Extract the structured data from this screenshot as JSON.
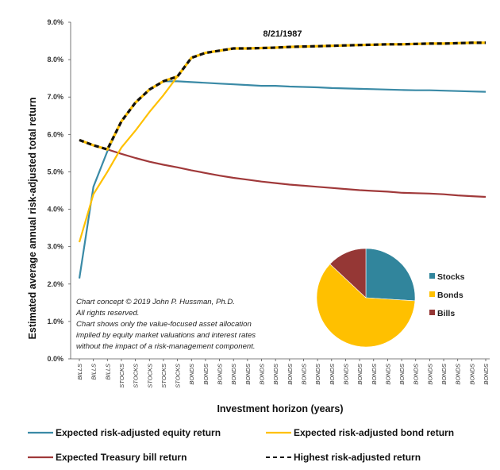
{
  "chart_data": {
    "type": "line",
    "title": "8/21/1987",
    "xlabel": "Investment horizon (years)",
    "ylabel": "Estimated average annual risk-adjusted  total return",
    "ylim": [
      0,
      9
    ],
    "y_ticks": [
      "0.0%",
      "1.0%",
      "2.0%",
      "3.0%",
      "4.0%",
      "5.0%",
      "6.0%",
      "7.0%",
      "8.0%",
      "9.0%"
    ],
    "y_tick_values": [
      0,
      1,
      2,
      3,
      4,
      5,
      6,
      7,
      8,
      9
    ],
    "categories": [
      "BILLS",
      "BILLS",
      "BILLS",
      "STOCKS",
      "STOCKS",
      "STOCKS",
      "STOCKS",
      "STOCKS",
      "BONDS",
      "BONDS",
      "BONDS",
      "BONDS",
      "BONDS",
      "BONDS",
      "BONDS",
      "BONDS",
      "BONDS",
      "BONDS",
      "BONDS",
      "BONDS",
      "BONDS",
      "BONDS",
      "BONDS",
      "BONDS",
      "BONDS",
      "BONDS",
      "BONDS",
      "BONDS",
      "BONDS",
      "BONDS"
    ],
    "series": [
      {
        "name": "Expected risk-adjusted equity return",
        "color": "#3a8aa6",
        "values": [
          2.15,
          4.6,
          5.55,
          6.35,
          6.85,
          7.2,
          7.42,
          7.42,
          7.4,
          7.38,
          7.36,
          7.34,
          7.32,
          7.3,
          7.3,
          7.28,
          7.27,
          7.26,
          7.24,
          7.23,
          7.22,
          7.21,
          7.2,
          7.19,
          7.18,
          7.18,
          7.17,
          7.16,
          7.15,
          7.14
        ]
      },
      {
        "name": "Expected risk-adjusted bond return",
        "color": "#ffc000",
        "values": [
          3.12,
          4.4,
          5.0,
          5.65,
          6.1,
          6.6,
          7.05,
          7.55,
          8.05,
          8.18,
          8.24,
          8.3,
          8.3,
          8.31,
          8.32,
          8.34,
          8.35,
          8.36,
          8.37,
          8.38,
          8.39,
          8.4,
          8.41,
          8.41,
          8.42,
          8.43,
          8.43,
          8.44,
          8.45,
          8.45
        ]
      },
      {
        "name": "Expected Treasury bill return",
        "color": "#a0393a",
        "values": [
          5.85,
          5.71,
          5.6,
          5.48,
          5.37,
          5.27,
          5.19,
          5.12,
          5.04,
          4.97,
          4.9,
          4.84,
          4.79,
          4.74,
          4.7,
          4.66,
          4.63,
          4.6,
          4.57,
          4.54,
          4.51,
          4.49,
          4.47,
          4.44,
          4.43,
          4.42,
          4.4,
          4.37,
          4.35,
          4.33
        ]
      },
      {
        "name": "Highest risk-adjusted return",
        "color": "#111111",
        "dashed": true,
        "values": [
          5.85,
          5.71,
          5.6,
          6.35,
          6.85,
          7.2,
          7.42,
          7.55,
          8.05,
          8.18,
          8.24,
          8.3,
          8.3,
          8.31,
          8.32,
          8.34,
          8.35,
          8.36,
          8.37,
          8.38,
          8.39,
          8.4,
          8.41,
          8.41,
          8.42,
          8.43,
          8.43,
          8.44,
          8.45,
          8.45
        ]
      }
    ],
    "pie": {
      "slices": [
        {
          "label": "Stocks",
          "value": 26,
          "color": "#31859c"
        },
        {
          "label": "Bonds",
          "value": 61,
          "color": "#ffc000"
        },
        {
          "label": "Bills",
          "value": 13,
          "color": "#953735"
        }
      ]
    },
    "annotation_lines": [
      "Chart concept © 2019 John P. Hussman, Ph.D.",
      "All rights reserved.",
      "Chart shows only the value-focused asset allocation",
      "implied by equity market valuations and interest rates",
      "without the impact of a risk-management component."
    ],
    "grid": false,
    "legend_position": "bottom"
  }
}
